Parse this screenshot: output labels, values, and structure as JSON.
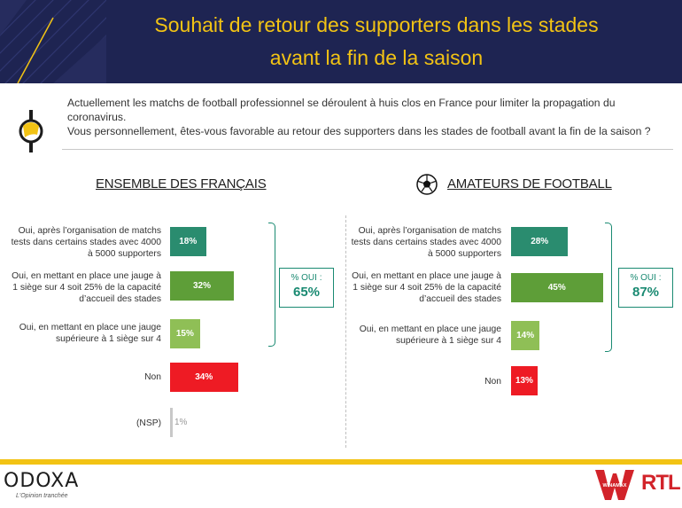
{
  "header": {
    "title_line1": "Souhait de retour des supporters dans les stades",
    "title_line2": "avant la fin de la saison"
  },
  "question": {
    "line1": "Actuellement les matchs de football professionnel se déroulent à huis clos en France pour limiter la propagation du coronavirus.",
    "line2": "Vous personnellement, êtes-vous favorable au retour des supporters dans les stades de football avant la fin de la saison ?"
  },
  "colors": {
    "header_bg": "#1e2452",
    "accent_yellow": "#f2c314",
    "bar_green_dark": "#2a8c6f",
    "bar_green": "#5e9e38",
    "bar_green_light": "#8fbf56",
    "bar_red": "#ee1b24",
    "bar_gray": "#c8c8c8",
    "oui_teal": "#1a8a72"
  },
  "chart_data": [
    {
      "type": "bar",
      "title": "ENSEMBLE DES FRANÇAIS",
      "categories": [
        "Oui, après l’organisation de matchs tests dans certains stades avec 4000 à 5000 supporters",
        "Oui, en mettant en place une jauge à 1 siège sur 4 soit 25% de la capacité d’accueil des stades",
        "Oui, en mettant en place une jauge supérieure à 1 siège sur 4",
        "Non",
        "(NSP)"
      ],
      "values": [
        18,
        32,
        15,
        34,
        1
      ],
      "value_labels": [
        "18%",
        "32%",
        "15%",
        "34%",
        "1%"
      ],
      "oui_label": "% OUI :",
      "oui_total": "65%"
    },
    {
      "type": "bar",
      "title": "AMATEURS DE FOOTBALL",
      "categories": [
        "Oui, après l’organisation de matchs tests dans certains stades avec 4000 à 5000 supporters",
        "Oui, en mettant en place une jauge à 1 siège sur 4 soit 25% de la capacité d’accueil des stades",
        "Oui, en mettant en place une jauge supérieure à 1 siège sur 4",
        "Non"
      ],
      "values": [
        28,
        45,
        14,
        13
      ],
      "value_labels": [
        "28%",
        "45%",
        "14%",
        "13%"
      ],
      "oui_label": "% OUI :",
      "oui_total": "87%"
    }
  ],
  "footer": {
    "logo": "ODOXA",
    "tagline": "L'Opinion tranchée",
    "partner1": "WINAMAX",
    "partner2": "RTL"
  }
}
